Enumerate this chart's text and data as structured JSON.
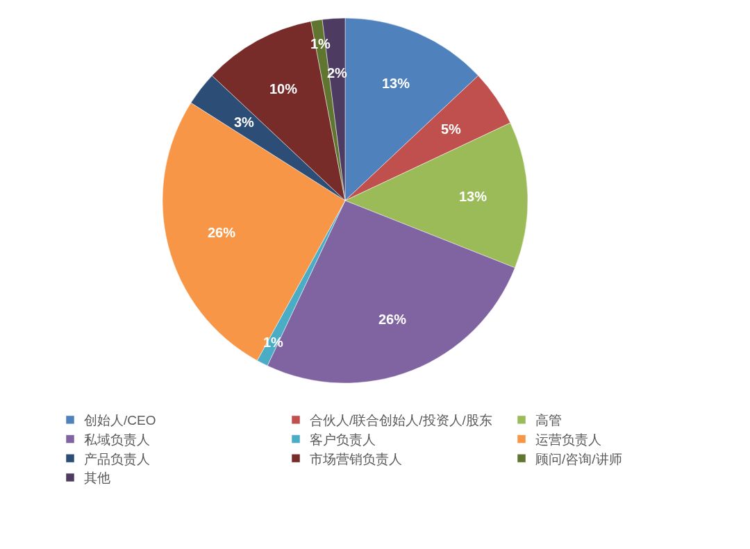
{
  "chart_data": {
    "type": "pie",
    "categories": [
      "创始人/CEO",
      "合伙人/联合创始人/投资人/股东",
      "高管",
      "私域负责人",
      "客户负责人",
      "运营负责人",
      "产品负责人",
      "市场营销负责人",
      "顾问/咨询/讲师",
      "其他"
    ],
    "values": [
      13,
      5,
      13,
      26,
      1,
      26,
      3,
      10,
      1,
      2
    ],
    "value_labels": [
      "13%",
      "5%",
      "13%",
      "26%",
      "1%",
      "26%",
      "3%",
      "10%",
      "1%",
      "2%"
    ],
    "colors": [
      "#4f81bd",
      "#c0504d",
      "#9bbb59",
      "#8064a2",
      "#4bacc6",
      "#f79646",
      "#2c4d75",
      "#772c2a",
      "#5f7530",
      "#4d3b62"
    ],
    "legend": "bottom"
  }
}
